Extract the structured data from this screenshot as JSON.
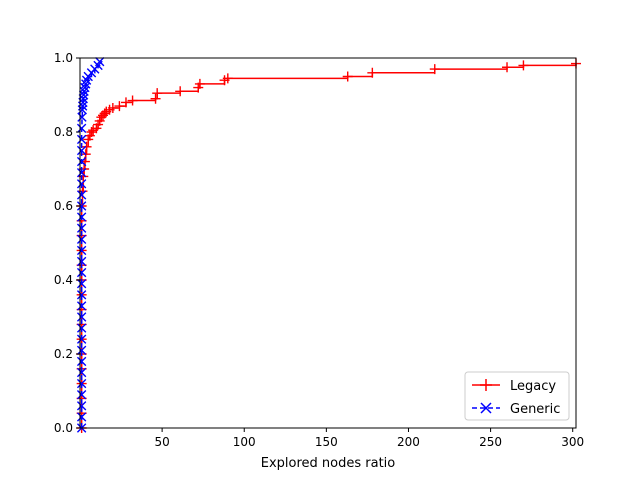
{
  "chart_data": {
    "type": "line",
    "title": "",
    "xlabel": "Explored nodes ratio",
    "ylabel": "",
    "xlim": [
      0,
      302
    ],
    "ylim": [
      0,
      1
    ],
    "x_ticks": [
      50,
      100,
      150,
      200,
      250,
      300
    ],
    "y_ticks": [
      0.0,
      0.2,
      0.4,
      0.6,
      0.8,
      1.0
    ],
    "x_tick_labels": [
      "50",
      "100",
      "150",
      "200",
      "250",
      "300"
    ],
    "y_tick_labels": [
      "0.0",
      "0.2",
      "0.4",
      "0.6",
      "0.8",
      "1.0"
    ],
    "grid": false,
    "legend_position": "bottom-right",
    "series": [
      {
        "name": "Legacy",
        "color": "#ff0000",
        "line_style": "solid",
        "marker": "plus",
        "x": [
          1,
          1,
          1,
          1,
          1,
          1,
          1,
          1,
          1,
          1,
          1,
          1,
          1,
          1,
          1,
          1,
          1.5,
          2,
          2.5,
          3,
          3.5,
          4,
          5,
          6,
          7,
          8,
          10,
          11,
          12,
          13,
          14,
          15,
          16,
          18,
          20,
          24,
          28,
          32,
          46,
          47,
          61,
          72,
          73,
          88,
          90,
          163,
          178,
          216,
          260,
          270,
          302
        ],
        "y": [
          0.0,
          0.04,
          0.08,
          0.12,
          0.16,
          0.2,
          0.24,
          0.28,
          0.32,
          0.36,
          0.4,
          0.44,
          0.48,
          0.52,
          0.56,
          0.6,
          0.64,
          0.68,
          0.7,
          0.72,
          0.74,
          0.76,
          0.78,
          0.79,
          0.8,
          0.805,
          0.81,
          0.82,
          0.83,
          0.84,
          0.845,
          0.85,
          0.855,
          0.86,
          0.865,
          0.87,
          0.88,
          0.885,
          0.89,
          0.905,
          0.91,
          0.92,
          0.93,
          0.94,
          0.945,
          0.95,
          0.96,
          0.97,
          0.975,
          0.98,
          0.985
        ]
      },
      {
        "name": "Generic",
        "color": "#0000ff",
        "line_style": "dashed",
        "marker": "x",
        "x": [
          1,
          1,
          1,
          1,
          1,
          1,
          1,
          1,
          1,
          1,
          1,
          1,
          1,
          1,
          1,
          1,
          1,
          1,
          1,
          1,
          1,
          1,
          1,
          1,
          1,
          1,
          1,
          1,
          1.2,
          1.4,
          1.6,
          1.8,
          2,
          2.2,
          2.5,
          3,
          3.5,
          4,
          5,
          7,
          9,
          11,
          12
        ],
        "y": [
          0.0,
          0.03,
          0.06,
          0.09,
          0.12,
          0.15,
          0.18,
          0.21,
          0.24,
          0.27,
          0.3,
          0.33,
          0.36,
          0.39,
          0.42,
          0.45,
          0.48,
          0.51,
          0.54,
          0.57,
          0.6,
          0.63,
          0.66,
          0.69,
          0.72,
          0.75,
          0.78,
          0.81,
          0.84,
          0.86,
          0.87,
          0.88,
          0.89,
          0.9,
          0.91,
          0.92,
          0.93,
          0.94,
          0.95,
          0.96,
          0.97,
          0.98,
          0.99
        ]
      }
    ]
  }
}
